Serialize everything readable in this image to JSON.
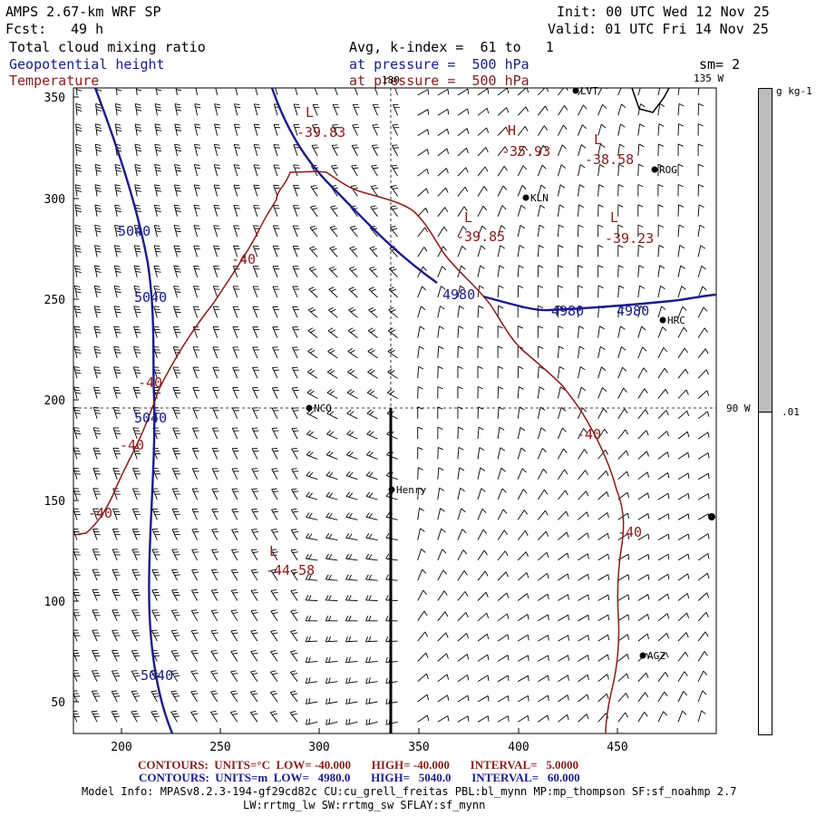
{
  "header": {
    "model": "AMPS 2.67-km WRF SP",
    "fcst_label": "Fcst:",
    "fcst_value": "49 h",
    "init": "Init: 00 UTC Wed 12 Nov 25",
    "valid": "Valid: 01 UTC Fri 14 Nov 25",
    "field1": "Total cloud mixing ratio",
    "field2": "Geopotential height",
    "field3": "Temperature",
    "avg": "Avg, k-index =  61 to   1",
    "pressure1": "at pressure =  500 hPa",
    "pressure2": "at pressure =  500 hPa",
    "sm": "sm= 2"
  },
  "map": {
    "lon_labels": [
      "180",
      "135 W",
      "90 W"
    ],
    "stations": [
      "LVT",
      "ROG",
      "KLN",
      "HRC",
      "NCO",
      "Henry",
      "AGZ"
    ],
    "contour_labels": {
      "temperature": [
        "-40",
        "-40",
        "-40",
        "-40",
        "-40",
        "-40"
      ],
      "height": [
        "5040",
        "5040",
        "5040",
        "5040",
        "4980",
        "4980",
        "4980"
      ],
      "extrema": [
        {
          "letter": "L",
          "value": "-39.83"
        },
        {
          "letter": "H",
          "value": "-35.93"
        },
        {
          "letter": "L",
          "value": "-38.58"
        },
        {
          "letter": "L",
          "value": "-39.85"
        },
        {
          "letter": "L",
          "value": "-39.23"
        },
        {
          "letter": "L",
          "value": "-44.58"
        }
      ]
    },
    "x_ticks": [
      "200",
      "250",
      "300",
      "350",
      "400",
      "450"
    ],
    "y_ticks": [
      "350",
      "300",
      "250",
      "200",
      "150",
      "100",
      "50"
    ]
  },
  "colorbar": {
    "units": "g kg-1",
    "value": ".01",
    "fill_color": "#bdbdbd"
  },
  "footer": {
    "contours_temp": "CONTOURS:  UNITS=°C  LOW= -40.000       HIGH= -40.000       INTERVAL=   5.0000",
    "contours_hgt": "CONTOURS:  UNITS=m  LOW=   4980.0       HIGH=   5040.0       INTERVAL=   60.000",
    "model_info": "Model Info: MPASv8.2.3-194-gf29cd82c CU:cu_grell_freitas PBL:bl_mynn MP:mp_thompson SF:sf_noahmp 2.7",
    "model_info2": "LW:rrtmg_lw SW:rrtmg_sw SFLAY:sf_mynn"
  },
  "colors": {
    "height_contour": "#1a1a8c",
    "temperature_contour": "#8b1a1a",
    "barbs": "#000000"
  }
}
